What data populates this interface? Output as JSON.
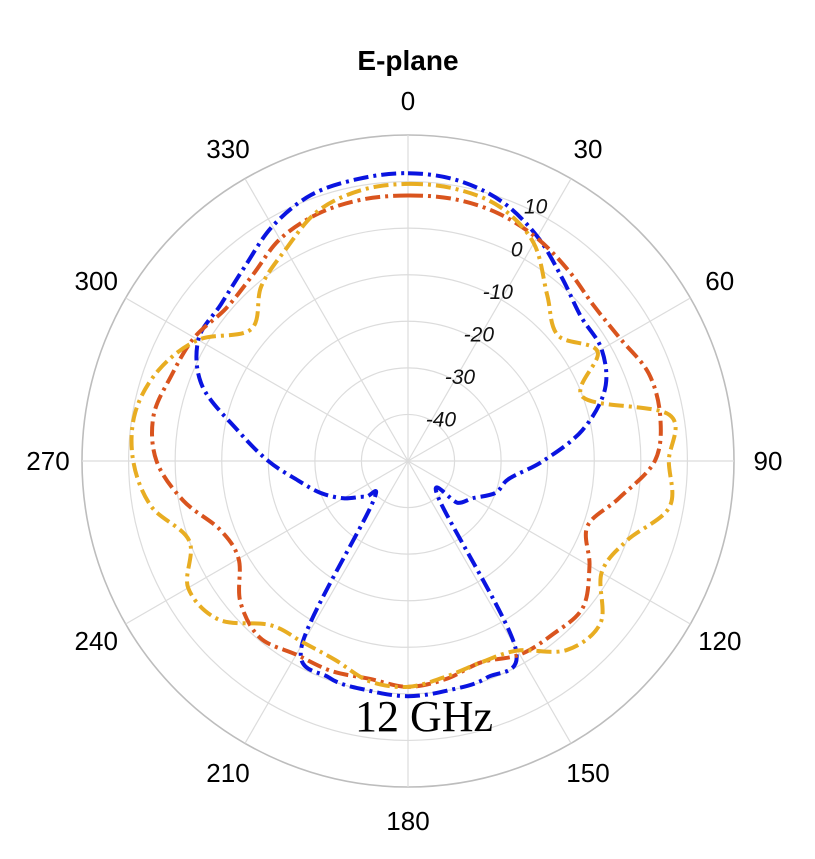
{
  "chart_data": {
    "type": "polar-line",
    "title": "E-plane",
    "annotation": "12 GHz",
    "angle_ticks": [
      "0",
      "30",
      "60",
      "90",
      "120",
      "150",
      "180",
      "210",
      "240",
      "270",
      "300",
      "330"
    ],
    "radial_ticks": [
      "-40",
      "-30",
      "-20",
      "-10",
      "0",
      "10"
    ],
    "rlim": [
      -50,
      20
    ],
    "grid": true,
    "theta_zero": "top",
    "theta_direction": "clockwise",
    "line_style": "dash-dot",
    "series": [
      {
        "color": "#0a14e0",
        "theta": [
          0,
          10,
          20,
          30,
          40,
          50,
          60,
          70,
          80,
          90,
          100,
          110,
          120,
          130,
          140,
          150,
          160,
          170,
          180,
          190,
          200,
          210,
          220,
          230,
          240,
          250,
          260,
          270,
          280,
          290,
          300,
          310,
          320,
          330,
          340,
          350,
          360
        ],
        "r": [
          11.8,
          11.2,
          9.2,
          5.6,
          1.4,
          -1.6,
          -2.0,
          -5.0,
          -12.0,
          -21.0,
          -28.0,
          -30.0,
          -34.0,
          -36.0,
          -40.0,
          -4.0,
          -0.5,
          0.0,
          0.5,
          0.0,
          -0.5,
          -4.5,
          -38.0,
          -38.0,
          -34.0,
          -30.0,
          -26.0,
          -20.0,
          -13.0,
          -3.0,
          2.0,
          2.4,
          4.5,
          8.2,
          10.8,
          11.5,
          11.8
        ]
      },
      {
        "color": "#d9541e",
        "theta": [
          0,
          10,
          20,
          30,
          40,
          50,
          60,
          70,
          80,
          90,
          100,
          110,
          120,
          130,
          140,
          150,
          160,
          170,
          180,
          190,
          200,
          210,
          220,
          230,
          240,
          250,
          260,
          270,
          280,
          290,
          300,
          310,
          320,
          330,
          340,
          350,
          360
        ],
        "r": [
          7.0,
          7.1,
          6.6,
          5.3,
          3.5,
          2.0,
          2.6,
          5.0,
          5.0,
          3.0,
          -4.0,
          -9.0,
          -5.0,
          -1.0,
          -1.5,
          -2.0,
          -4.0,
          -2.5,
          -1.5,
          -2.5,
          -2.0,
          -2.0,
          -0.5,
          -3.0,
          -8.0,
          -7.0,
          -1.0,
          4.0,
          5.5,
          4.0,
          3.0,
          1.0,
          2.0,
          5.0,
          6.5,
          7.0,
          7.0
        ]
      },
      {
        "color": "#e8ad22",
        "theta": [
          0,
          10,
          20,
          30,
          40,
          50,
          60,
          70,
          80,
          90,
          100,
          110,
          120,
          130,
          140,
          150,
          160,
          170,
          180,
          190,
          200,
          210,
          220,
          230,
          240,
          250,
          260,
          270,
          280,
          290,
          300,
          310,
          320,
          330,
          340,
          350,
          360
        ],
        "r": [
          9.5,
          9.3,
          8.0,
          4.0,
          -3.5,
          -8.0,
          -3.0,
          -10.0,
          7.0,
          6.0,
          7.0,
          0.0,
          -2.0,
          4.0,
          3.0,
          -3.0,
          -4.0,
          -3.0,
          -1.5,
          -2.0,
          -4.5,
          -5.0,
          -4.0,
          3.0,
          4.5,
          0.0,
          6.0,
          9.0,
          9.5,
          7.0,
          2.0,
          -6.0,
          -1.0,
          2.5,
          7.0,
          9.0,
          9.5
        ]
      }
    ]
  }
}
